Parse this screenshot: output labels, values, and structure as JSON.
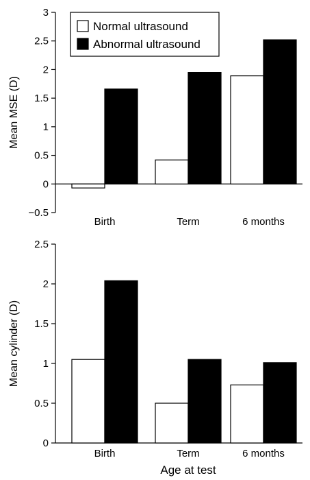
{
  "figure": {
    "shared_xlabel": "Age at test"
  },
  "chart_data": [
    {
      "type": "bar",
      "categories": [
        "Birth",
        "Term",
        "6 months"
      ],
      "series": [
        {
          "name": "Normal ultrasound",
          "values": [
            -0.07,
            0.42,
            1.89
          ],
          "color": "#ffffff"
        },
        {
          "name": "Abnormal ultrasound",
          "values": [
            1.66,
            1.95,
            2.52
          ],
          "color": "#000000"
        }
      ],
      "ylabel": "Mean MSE (D)",
      "xlabel": "",
      "ylim": [
        -0.5,
        3
      ],
      "yticks": [
        -0.5,
        0,
        0.5,
        1,
        1.5,
        2,
        2.5,
        3
      ],
      "ytick_labels": [
        "−0.5",
        "0",
        "0.5",
        "1",
        "1.5",
        "2",
        "2.5",
        "3"
      ],
      "legend": {
        "position": "top-left",
        "entries": [
          "Normal ultrasound",
          "Abnormal ultrasound"
        ]
      },
      "grid": false
    },
    {
      "type": "bar",
      "categories": [
        "Birth",
        "Term",
        "6 months"
      ],
      "series": [
        {
          "name": "Normal ultrasound",
          "values": [
            1.05,
            0.5,
            0.73
          ],
          "color": "#ffffff"
        },
        {
          "name": "Abnormal ultrasound",
          "values": [
            2.04,
            1.05,
            1.01
          ],
          "color": "#000000"
        }
      ],
      "ylabel": "Mean cylinder (D)",
      "xlabel": "",
      "ylim": [
        0,
        2.5
      ],
      "yticks": [
        0,
        0.5,
        1,
        1.5,
        2,
        2.5
      ],
      "ytick_labels": [
        "0",
        "0.5",
        "1",
        "1.5",
        "2",
        "2.5"
      ],
      "grid": false
    }
  ]
}
